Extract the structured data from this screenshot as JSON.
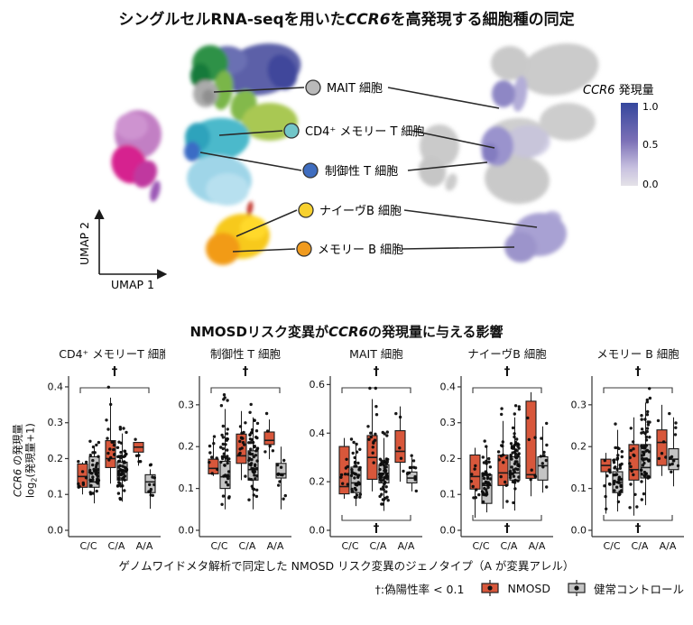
{
  "top_section": {
    "title": {
      "prefix": "シングルセルRNA-seqを用いた",
      "gene": "CCR6",
      "suffix": "を高発現する細胞種の同定"
    }
  },
  "bottom_section": {
    "title": {
      "prefix": "NMOSDリスク変異が",
      "gene": "CCR6",
      "suffix": "の発現量に与える影響"
    },
    "ylabel": {
      "gene": "CCR6",
      "rest": " の発現量",
      "line2_pre": "log",
      "line2_sub": "2",
      "line2_post": "(発現量+1)"
    },
    "xcaption": "ゲノムワイドメタ解析で同定した NMOSD リスク変異のジェノタイプ（A が変異アレル）",
    "legend": {
      "dagger_note": "†:偽陽性率 < 0.1",
      "nmosd_label": "NMOSD",
      "control_label": "健常コントロール",
      "nmosd_color": "#D8573B",
      "control_color": "#C4C4C4"
    }
  },
  "chart_data": [
    {
      "type": "scatter",
      "name": "umap-single-cell",
      "xlabel": "UMAP 1",
      "ylabel": "UMAP 2",
      "cell_types": [
        {
          "label": "MAIT 細胞",
          "color": "#B9B9B9"
        },
        {
          "label": "CD4⁺ メモリー T 細胞",
          "color": "#72C6C9"
        },
        {
          "label": "制御性 T 細胞",
          "color": "#3F6DBF"
        },
        {
          "label": "ナイーヴB 細胞",
          "color": "#F8D12E"
        },
        {
          "label": "メモリー B 細胞",
          "color": "#F09B1F"
        }
      ],
      "colorbar": {
        "title_gene": "CCR6",
        "title_rest": " 発現量",
        "ticks": [
          "1.0",
          "0.5",
          "0.0"
        ],
        "stops": [
          "#35479D",
          "#7A6FB6",
          "#C7C0DF",
          "#E4E2E8"
        ]
      }
    },
    {
      "type": "boxplot",
      "name": "genotype-expression-panels",
      "genotypes": [
        "C/C",
        "C/A",
        "A/A"
      ],
      "series": [
        "NMOSD",
        "健常コントロール"
      ],
      "box_format": "[whisker_low, q1, median, q3, whisker_high] of log2(expression+1)",
      "panels": [
        {
          "title": "CD4⁺ メモリーT 細胞",
          "ylim": [
            0,
            0.42
          ],
          "yticks": [
            0,
            0.1,
            0.2,
            0.3,
            0.4
          ],
          "sig_top": true,
          "sig_bottom": false,
          "nmosd": [
            [
              0.1,
              0.12,
              0.15,
              0.185,
              0.19
            ],
            [
              0.13,
              0.175,
              0.2,
              0.25,
              0.37
            ],
            [
              0.18,
              0.218,
              0.232,
              0.245,
              0.245
            ]
          ],
          "control": [
            [
              0.075,
              0.12,
              0.135,
              0.205,
              0.23
            ],
            [
              0.08,
              0.14,
              0.165,
              0.19,
              0.27
            ],
            [
              0.06,
              0.105,
              0.135,
              0.155,
              0.17
            ]
          ],
          "n_nmosd": [
            9,
            15,
            5
          ],
          "n_control": [
            42,
            58,
            11
          ]
        },
        {
          "title": "制御性 T 細胞",
          "ylim": [
            0,
            0.36
          ],
          "yticks": [
            0,
            0.1,
            0.2,
            0.3
          ],
          "sig_top": true,
          "sig_bottom": false,
          "nmosd": [
            [
              0.13,
              0.135,
              0.148,
              0.17,
              0.22
            ],
            [
              0.12,
              0.16,
              0.178,
              0.23,
              0.285
            ],
            [
              0.17,
              0.205,
              0.215,
              0.235,
              0.265
            ]
          ],
          "control": [
            [
              0.05,
              0.1,
              0.128,
              0.165,
              0.29
            ],
            [
              0.05,
              0.12,
              0.145,
              0.19,
              0.27
            ],
            [
              0.05,
              0.125,
              0.135,
              0.16,
              0.2
            ]
          ],
          "n_nmosd": [
            9,
            15,
            5
          ],
          "n_control": [
            42,
            58,
            11
          ]
        },
        {
          "title": "MAIT 細胞",
          "ylim": [
            0,
            0.62
          ],
          "yticks": [
            0,
            0.2,
            0.4,
            0.6
          ],
          "sig_top": true,
          "sig_bottom": true,
          "nmosd": [
            [
              0.13,
              0.15,
              0.18,
              0.345,
              0.38
            ],
            [
              0.16,
              0.21,
              0.3,
              0.39,
              0.54
            ],
            [
              0.2,
              0.28,
              0.325,
              0.41,
              0.51
            ]
          ],
          "control": [
            [
              0.1,
              0.155,
              0.195,
              0.26,
              0.35
            ],
            [
              0.08,
              0.195,
              0.235,
              0.27,
              0.38
            ],
            [
              0.16,
              0.195,
              0.215,
              0.24,
              0.3
            ]
          ],
          "n_nmosd": [
            9,
            15,
            5
          ],
          "n_control": [
            42,
            58,
            11
          ]
        },
        {
          "title": "ナイーヴB 細胞",
          "ylim": [
            0,
            0.42
          ],
          "yticks": [
            0,
            0.1,
            0.2,
            0.3,
            0.4
          ],
          "sig_top": true,
          "sig_bottom": true,
          "nmosd": [
            [
              0.035,
              0.115,
              0.15,
              0.21,
              0.23
            ],
            [
              0.06,
              0.125,
              0.16,
              0.21,
              0.305
            ],
            [
              0.095,
              0.145,
              0.155,
              0.36,
              0.385
            ]
          ],
          "control": [
            [
              0.05,
              0.075,
              0.125,
              0.155,
              0.23
            ],
            [
              0.055,
              0.14,
              0.16,
              0.205,
              0.315
            ],
            [
              0.105,
              0.14,
              0.18,
              0.205,
              0.29
            ]
          ],
          "n_nmosd": [
            9,
            15,
            7
          ],
          "n_control": [
            42,
            58,
            10
          ]
        },
        {
          "title": "メモリー B 細胞",
          "ylim": [
            0,
            0.36
          ],
          "yticks": [
            0,
            0.1,
            0.2,
            0.3
          ],
          "sig_top": true,
          "sig_bottom": true,
          "nmosd": [
            [
              0.04,
              0.14,
              0.155,
              0.17,
              0.185
            ],
            [
              0.035,
              0.12,
              0.145,
              0.205,
              0.27
            ],
            [
              0.13,
              0.155,
              0.21,
              0.24,
              0.3
            ]
          ],
          "control": [
            [
              0.045,
              0.09,
              0.115,
              0.14,
              0.24
            ],
            [
              0.06,
              0.125,
              0.15,
              0.205,
              0.305
            ],
            [
              0.105,
              0.145,
              0.17,
              0.195,
              0.27
            ]
          ],
          "n_nmosd": [
            9,
            15,
            5
          ],
          "n_control": [
            42,
            58,
            12
          ]
        }
      ]
    }
  ]
}
